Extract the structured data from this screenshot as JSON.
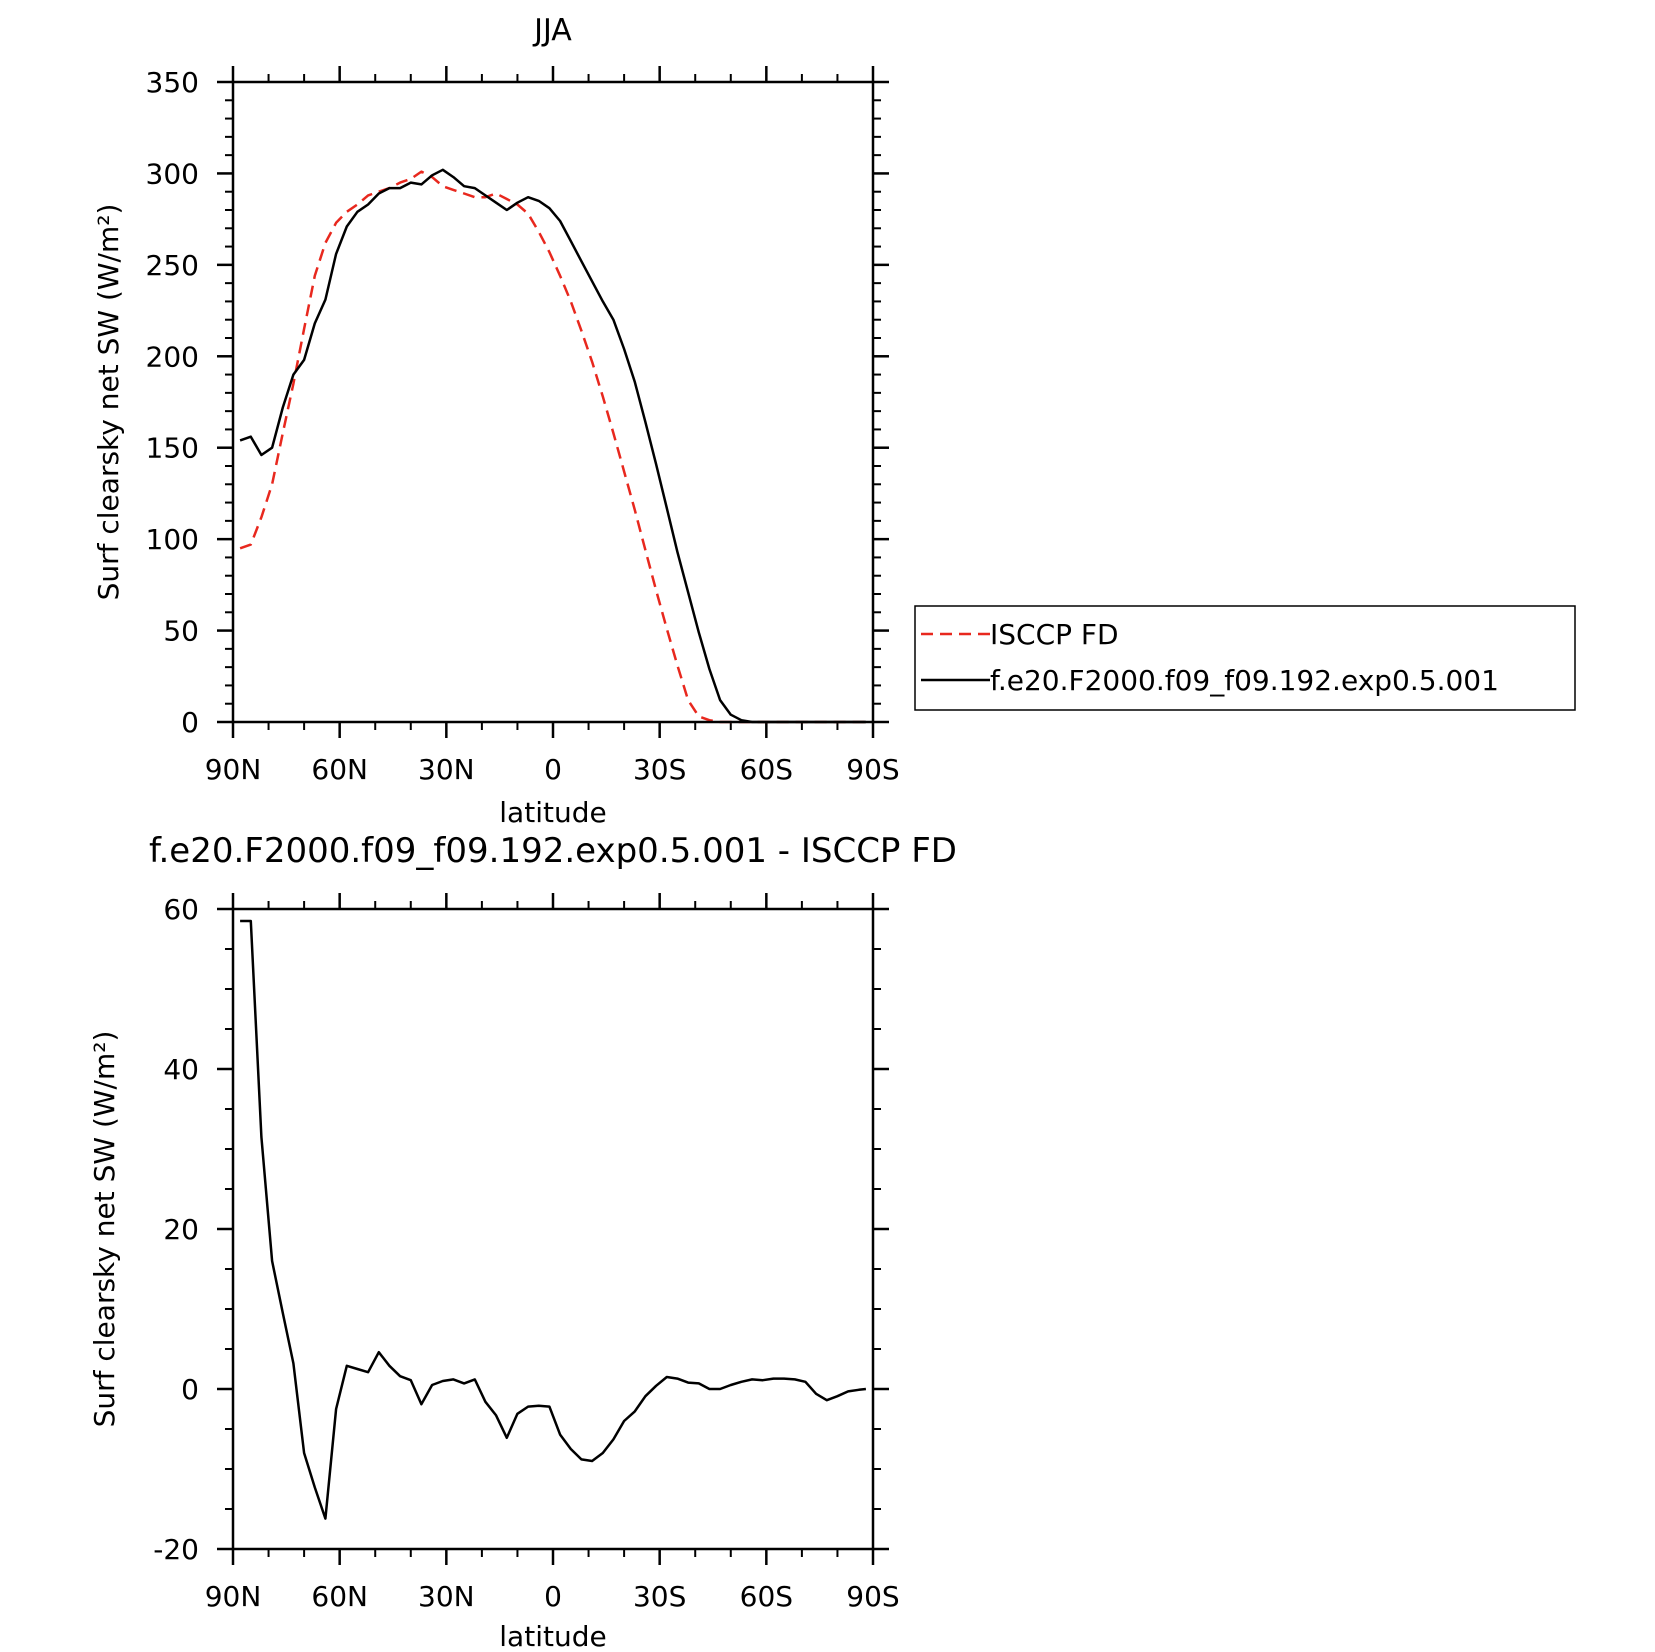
{
  "chart_data": [
    {
      "type": "line",
      "title": "JJA",
      "xlabel": "latitude",
      "ylabel": "Surf clearsky net SW (W/m²)",
      "xlim": [
        90,
        -90
      ],
      "ylim": [
        0,
        350
      ],
      "x_ticks": [
        {
          "v": 90,
          "label": "90N"
        },
        {
          "v": 60,
          "label": "60N"
        },
        {
          "v": 30,
          "label": "30N"
        },
        {
          "v": 0,
          "label": "0"
        },
        {
          "v": -30,
          "label": "30S"
        },
        {
          "v": -60,
          "label": "60S"
        },
        {
          "v": -90,
          "label": "90S"
        }
      ],
      "y_ticks": [
        {
          "v": 0,
          "label": "0"
        },
        {
          "v": 50,
          "label": "50"
        },
        {
          "v": 100,
          "label": "100"
        },
        {
          "v": 150,
          "label": "150"
        },
        {
          "v": 200,
          "label": "200"
        },
        {
          "v": 250,
          "label": "250"
        },
        {
          "v": 300,
          "label": "300"
        },
        {
          "v": 350,
          "label": "350"
        }
      ],
      "legend": "right",
      "series": [
        {
          "name": "ISCCP FD",
          "color": "#e8281e",
          "dash": "dashed",
          "x": [
            88,
            85,
            82,
            79,
            76,
            73,
            70,
            67,
            64,
            61,
            58,
            55,
            52,
            49,
            46,
            43,
            40,
            37,
            34,
            31,
            28,
            25,
            22,
            19,
            16,
            13,
            10,
            7,
            4,
            1,
            -2,
            -5,
            -8,
            -11,
            -14,
            -17,
            -20,
            -23,
            -26,
            -29,
            -32,
            -35,
            -38,
            -41,
            -44,
            -47,
            -50,
            -53,
            -56,
            -59,
            -62,
            -65,
            -68,
            -71,
            -74,
            -77,
            -80,
            -83,
            -86,
            -88
          ],
          "y": [
            95,
            97,
            112,
            130,
            158,
            185,
            215,
            244,
            262,
            273,
            279,
            283,
            288,
            290,
            292,
            295,
            297,
            301,
            298,
            293,
            291,
            289,
            287,
            287,
            289,
            286,
            283,
            278,
            268,
            257,
            244,
            230,
            214,
            197,
            178,
            158,
            137,
            116,
            94,
            72,
            51,
            31,
            12,
            3,
            1,
            0,
            0,
            0,
            0,
            0,
            0,
            0,
            0,
            0,
            0,
            0,
            0,
            0,
            0,
            0
          ]
        },
        {
          "name": "f.e20.F2000.f09_f09.192.exp0.5.001",
          "color": "#000000",
          "dash": "solid",
          "x": [
            88,
            85,
            82,
            79,
            76,
            73,
            70,
            67,
            64,
            61,
            58,
            55,
            52,
            49,
            46,
            43,
            40,
            37,
            34,
            31,
            28,
            25,
            22,
            19,
            16,
            13,
            10,
            7,
            4,
            1,
            -2,
            -5,
            -8,
            -11,
            -14,
            -17,
            -20,
            -23,
            -26,
            -29,
            -32,
            -35,
            -38,
            -41,
            -44,
            -47,
            -50,
            -53,
            -56,
            -59,
            -62,
            -65,
            -68,
            -71,
            -74,
            -77,
            -80,
            -83,
            -86,
            -88
          ],
          "y": [
            154,
            156,
            146,
            150,
            172,
            190,
            198,
            218,
            231,
            256,
            271,
            279,
            283,
            289,
            292,
            292,
            295,
            294,
            299,
            302,
            298,
            293,
            292,
            288,
            284,
            280,
            284,
            287,
            285,
            281,
            274,
            263,
            252,
            241,
            230,
            220,
            204,
            186,
            164,
            141,
            117,
            93,
            71,
            49,
            29,
            12,
            4,
            1,
            0,
            0,
            0,
            0,
            0,
            0,
            0,
            0,
            0,
            0,
            0,
            0
          ]
        }
      ]
    },
    {
      "type": "line",
      "title": "f.e20.F2000.f09_f09.192.exp0.5.001 - ISCCP FD",
      "xlabel": "latitude",
      "ylabel": "Surf clearsky net SW (W/m²)",
      "xlim": [
        90,
        -90
      ],
      "ylim": [
        -20,
        60
      ],
      "x_ticks": [
        {
          "v": 90,
          "label": "90N"
        },
        {
          "v": 60,
          "label": "60N"
        },
        {
          "v": 30,
          "label": "30N"
        },
        {
          "v": 0,
          "label": "0"
        },
        {
          "v": -30,
          "label": "30S"
        },
        {
          "v": -60,
          "label": "60S"
        },
        {
          "v": -90,
          "label": "90S"
        }
      ],
      "y_ticks": [
        {
          "v": -20,
          "label": "-20"
        },
        {
          "v": 0,
          "label": "0"
        },
        {
          "v": 20,
          "label": "20"
        },
        {
          "v": 40,
          "label": "40"
        },
        {
          "v": 60,
          "label": "60"
        }
      ],
      "series": [
        {
          "color": "#000000",
          "dash": "solid",
          "x": [
            88,
            85,
            82,
            79,
            76,
            73,
            70,
            67,
            64,
            61,
            58,
            55,
            52,
            49,
            46,
            43,
            40,
            37,
            34,
            31,
            28,
            25,
            22,
            19,
            16,
            13,
            10,
            7,
            4,
            1,
            -2,
            -5,
            -8,
            -11,
            -14,
            -17,
            -20,
            -23,
            -26,
            -29,
            -32,
            -35,
            -38,
            -41,
            -44,
            -47,
            -50,
            -53,
            -56,
            -59,
            -62,
            -65,
            -68,
            -71,
            -74,
            -77,
            -80,
            -83,
            -86,
            -88
          ],
          "y": [
            58.5,
            58.5,
            31.5,
            16,
            9.5,
            3.2,
            -8,
            -12.3,
            -16.2,
            -2.5,
            2.9,
            2.5,
            2.1,
            4.6,
            2.9,
            1.6,
            1.1,
            -1.9,
            0.5,
            1,
            1.2,
            0.7,
            1.2,
            -1.6,
            -3.3,
            -6.1,
            -3.1,
            -2.2,
            -2.1,
            -2.2,
            -5.7,
            -7.5,
            -8.8,
            -9,
            -8,
            -6.3,
            -4,
            -2.8,
            -0.9,
            0.4,
            1.5,
            1.3,
            0.8,
            0.7,
            0,
            0,
            0.5,
            0.9,
            1.2,
            1.1,
            1.3,
            1.3,
            1.2,
            0.9,
            -0.6,
            -1.4,
            -0.9,
            -0.3,
            -0.1,
            0
          ]
        }
      ]
    }
  ],
  "legend": {
    "items": [
      {
        "label": "ISCCP FD"
      },
      {
        "label": "f.e20.F2000.f09_f09.192.exp0.5.001"
      }
    ]
  }
}
